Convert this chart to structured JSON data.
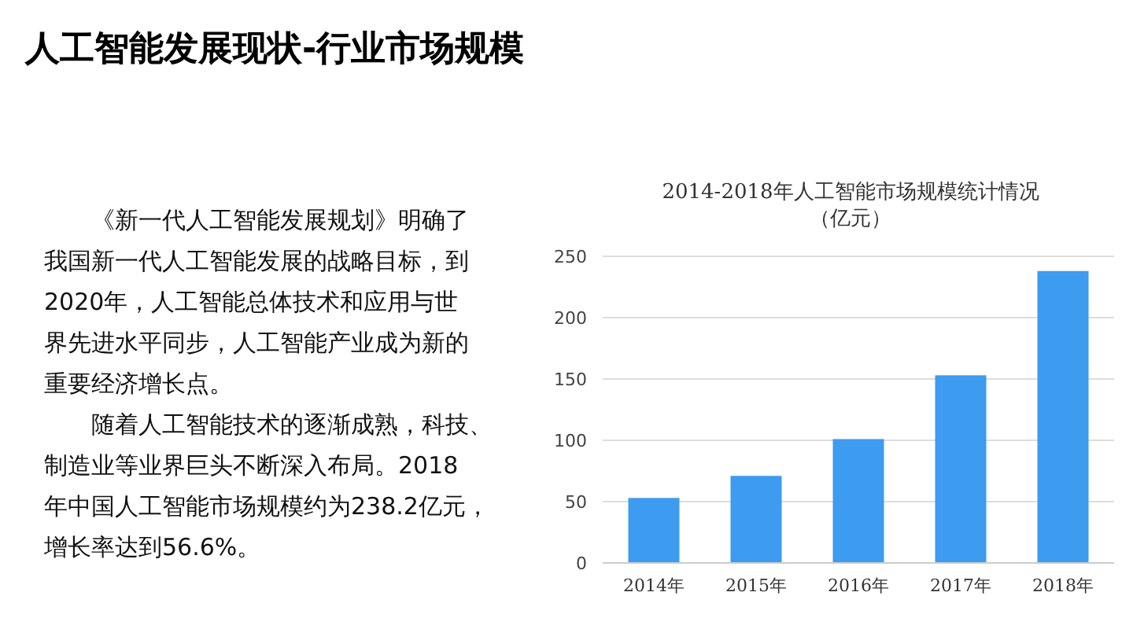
{
  "chart_data": [
    {
      "type": "other",
      "title": "人工智能发展现状-行业市场规模",
      "annotations": [
        "《新一代人工智能发展规划》明确了我国新一代人工智能发展的战略目标，到2020年，人工智能总体技术和应用与世界先进水平同步，人工智能产业成为新的重要经济增长点。",
        "随着人工智能技术的逐渐成熟，科技、制造业等业界巨头不断深入布局。2018年中国人工智能市场规模约为238.2亿元，增长率达到56.6%。"
      ]
    },
    {
      "type": "bar",
      "title": "2014-2018年人工智能市场规模统计情况（亿元）",
      "categories": [
        "2014年",
        "2015年",
        "2016年",
        "2017年",
        "2018年"
      ],
      "values": [
        53,
        71,
        101,
        153,
        238
      ],
      "color": "#3d9bf0",
      "ylim": [
        0,
        250
      ],
      "yticks": [
        0,
        50,
        100,
        150,
        200,
        250
      ],
      "grid": "y"
    }
  ]
}
